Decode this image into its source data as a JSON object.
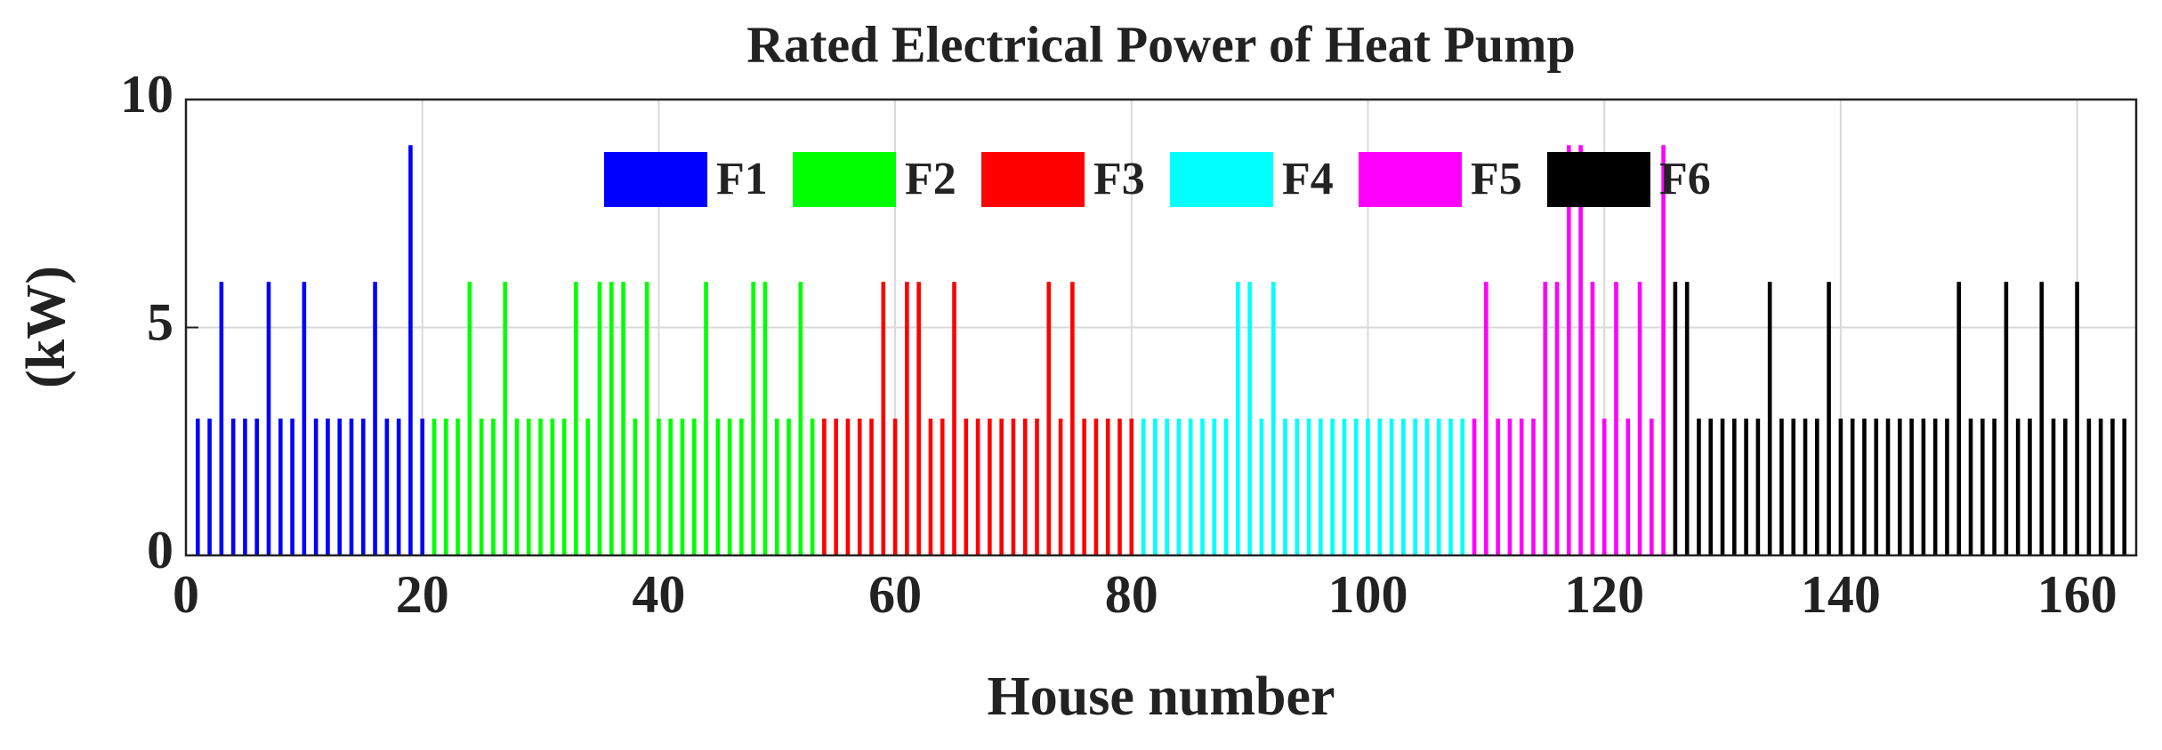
{
  "chart_data": {
    "type": "bar",
    "title": "Rated Electrical Power of Heat Pump",
    "x_label": "House number",
    "y_label": "(kW)",
    "xlim": [
      0,
      165
    ],
    "xticks": [
      0,
      20,
      40,
      60,
      80,
      100,
      120,
      140,
      160
    ],
    "ylim": [
      0,
      10
    ],
    "yticks": [
      0,
      5,
      10
    ],
    "grid": true,
    "legend": "top",
    "series": [
      {
        "name": "F1",
        "color": "#0000ff",
        "x": [
          1,
          2,
          3,
          4,
          5,
          6,
          7,
          8,
          9,
          10,
          11,
          12,
          13,
          14,
          15,
          16,
          17,
          18,
          19,
          20
        ],
        "values": [
          3,
          3,
          6,
          3,
          3,
          3,
          6,
          3,
          3,
          6,
          3,
          3,
          3,
          3,
          3,
          6,
          3,
          3,
          9,
          3
        ]
      },
      {
        "name": "F2",
        "color": "#00ff00",
        "x": [
          21,
          22,
          23,
          24,
          25,
          26,
          27,
          28,
          29,
          30,
          31,
          32,
          33,
          34,
          35,
          36,
          37,
          38,
          39,
          40,
          41,
          42,
          43,
          44,
          45,
          46,
          47,
          48,
          49,
          50,
          51,
          52,
          53
        ],
        "values": [
          3,
          3,
          3,
          6,
          3,
          3,
          6,
          3,
          3,
          3,
          3,
          3,
          6,
          3,
          6,
          6,
          6,
          3,
          6,
          3,
          3,
          3,
          3,
          6,
          3,
          3,
          3,
          6,
          6,
          3,
          3,
          6,
          3
        ]
      },
      {
        "name": "F3",
        "color": "#ff0000",
        "x": [
          54,
          55,
          56,
          57,
          58,
          59,
          60,
          61,
          62,
          63,
          64,
          65,
          66,
          67,
          68,
          69,
          70,
          71,
          72,
          73,
          74,
          75,
          76,
          77,
          78,
          79,
          80
        ],
        "values": [
          3,
          3,
          3,
          3,
          3,
          6,
          3,
          6,
          6,
          3,
          3,
          6,
          3,
          3,
          3,
          3,
          3,
          3,
          3,
          6,
          3,
          6,
          3,
          3,
          3,
          3,
          3
        ]
      },
      {
        "name": "F4",
        "color": "#00ffff",
        "x": [
          81,
          82,
          83,
          84,
          85,
          86,
          87,
          88,
          89,
          90,
          91,
          92,
          93,
          94,
          95,
          96,
          97,
          98,
          99,
          100,
          101,
          102,
          103,
          104,
          105,
          106,
          107,
          108
        ],
        "values": [
          3,
          3,
          3,
          3,
          3,
          3,
          3,
          3,
          6,
          6,
          3,
          6,
          3,
          3,
          3,
          3,
          3,
          3,
          3,
          3,
          3,
          3,
          3,
          3,
          3,
          3,
          3,
          3
        ]
      },
      {
        "name": "F5",
        "color": "#ff00ff",
        "x": [
          109,
          110,
          111,
          112,
          113,
          114,
          115,
          116,
          117,
          118,
          119,
          120,
          121,
          122,
          123,
          124,
          125
        ],
        "values": [
          3,
          6,
          3,
          3,
          3,
          3,
          6,
          6,
          9,
          9,
          6,
          3,
          6,
          3,
          6,
          3,
          9
        ]
      },
      {
        "name": "F6",
        "color": "#000000",
        "x": [
          126,
          127,
          128,
          129,
          130,
          131,
          132,
          133,
          134,
          135,
          136,
          137,
          138,
          139,
          140,
          141,
          142,
          143,
          144,
          145,
          146,
          147,
          148,
          149,
          150,
          151,
          152,
          153,
          154,
          155,
          156,
          157,
          158,
          159,
          160,
          161,
          162,
          163,
          164
        ],
        "values": [
          6,
          6,
          3,
          3,
          3,
          3,
          3,
          3,
          6,
          3,
          3,
          3,
          3,
          6,
          3,
          3,
          3,
          3,
          3,
          3,
          3,
          3,
          3,
          3,
          6,
          3,
          3,
          3,
          6,
          3,
          3,
          6,
          3,
          3,
          6,
          3,
          3,
          3,
          3
        ]
      }
    ]
  }
}
